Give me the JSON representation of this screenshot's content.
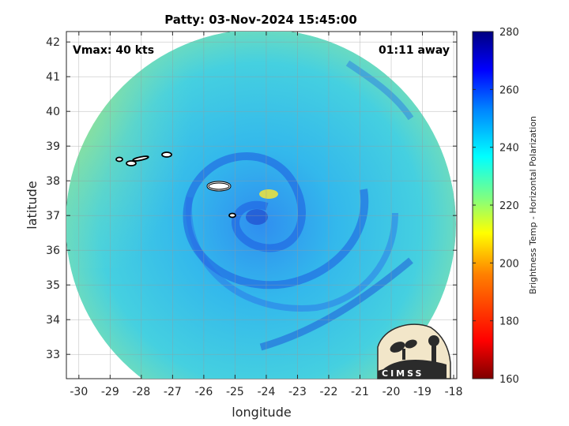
{
  "title": "Patty: 03-Nov-2024 15:45:00",
  "vmax_label": "Vmax: 40 kts",
  "time_away_label": "01:11 away",
  "map": {
    "xlabel": "longitude",
    "ylabel": "latitude",
    "xlim": [
      -30.4,
      -17.9
    ],
    "ylim": [
      32.3,
      42.3
    ],
    "xticks": [
      "-30",
      "-29",
      "-28",
      "-27",
      "-26",
      "-25",
      "-24",
      "-23",
      "-22",
      "-21",
      "-20",
      "-19",
      "-18"
    ],
    "yticks": [
      "33",
      "34",
      "35",
      "36",
      "37",
      "38",
      "39",
      "40",
      "41",
      "42"
    ],
    "grid": true,
    "storm_center": [
      -24.2,
      37.0
    ]
  },
  "colorbar": {
    "label": "Brightness Temp - Horizontal Polarization",
    "range": [
      160,
      280
    ],
    "ticks": [
      "160",
      "180",
      "200",
      "220",
      "240",
      "260",
      "280"
    ],
    "colors": [
      "#7f0000",
      "#ff0000",
      "#ff8000",
      "#ffff00",
      "#80ff80",
      "#00ffff",
      "#0080ff",
      "#0000ff",
      "#00007f"
    ]
  },
  "logo": {
    "text": "CIMSS"
  }
}
